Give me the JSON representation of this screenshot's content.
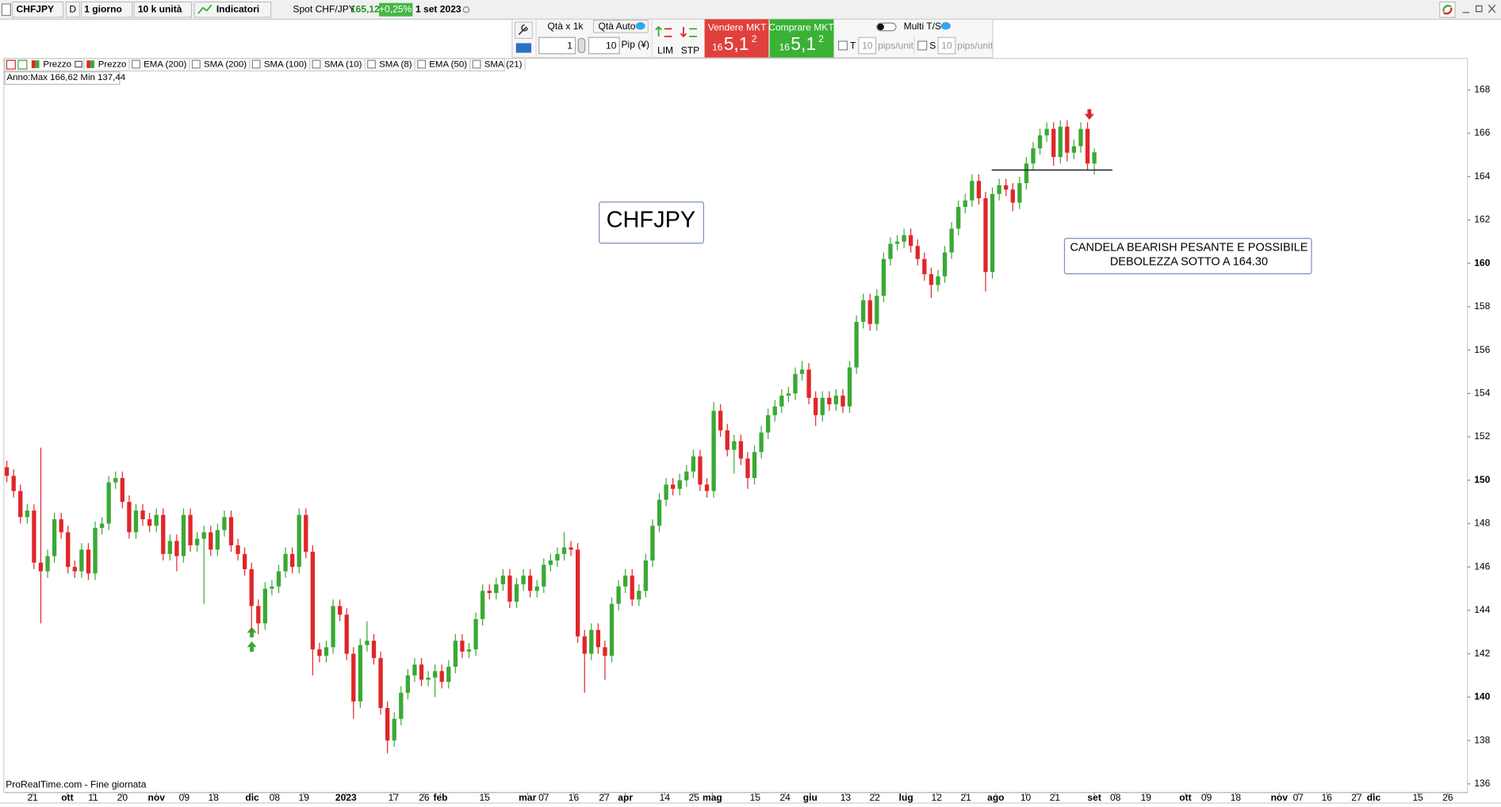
{
  "toolbar": {
    "symbol": "CHFJPY",
    "mode": "D",
    "period": "1 giorno",
    "units": "10 k unità",
    "indicators": "Indicatori",
    "instrument": "Spot CHF/JPY",
    "price": "165,12",
    "change": "+0,25%",
    "date": "1 set 2023"
  },
  "order_panel": {
    "qty_label": "Qtà  x 1k",
    "qty_auto": "Qtà Auto",
    "qty_value": "1",
    "pip_value": "10",
    "pip_label": "Pip (¥)",
    "lim": "LIM",
    "stp": "STP",
    "sell": {
      "label": "Vendere MKT",
      "prefix": "16",
      "big": "5,1",
      "sup": "2"
    },
    "buy": {
      "label": "Comprare MKT",
      "prefix": "16",
      "big": "5,1",
      "sup": "2"
    },
    "multi_ts": "Multi T/S",
    "t_label": "T",
    "t_value": "10",
    "t_unit": "pips/unit",
    "s_label": "S",
    "s_value": "10",
    "s_unit": "pips/unit"
  },
  "indicator_bar": [
    "Prezzo",
    "Prezzo",
    "EMA (200)",
    "SMA (200)",
    "SMA (100)",
    "SMA (10)",
    "SMA (8)",
    "EMA (50)",
    "SMA (21)"
  ],
  "year_range": "Anno:Max 166,62 Min 137,44",
  "footer": "ProRealTime.com - Fine giornata",
  "chart_data": {
    "type": "candlestick",
    "up_color": "#3aa935",
    "down_color": "#e0262a",
    "annotations": [
      "CHFJPY",
      "CANDELA BEARISH PESANTE E POSSIBILE",
      "DEBOLEZZA SOTTO A 164.30"
    ],
    "support_level": 164.3,
    "open": [
      150.6,
      150.2,
      149.5,
      148.3,
      148.6,
      146.2,
      145.8,
      146.5,
      148.2,
      147.6,
      146.0,
      145.8,
      146.8,
      145.7,
      147.8,
      148.0,
      149.9,
      150.1,
      149.0,
      147.6,
      148.6,
      148.2,
      147.9,
      148.4,
      146.6,
      147.2,
      146.5,
      148.4,
      147.0,
      147.3,
      147.6,
      146.8,
      147.7,
      148.3,
      147.0,
      146.6,
      145.9,
      144.2,
      143.4,
      145.0,
      145.1,
      145.8,
      146.6,
      146.0,
      148.4,
      146.7,
      142.2,
      141.9,
      142.3,
      144.2,
      143.8,
      142.0,
      139.8,
      142.4,
      142.6,
      141.8,
      139.5,
      138.0,
      139.0,
      140.2,
      141.0,
      141.5,
      140.8,
      140.9,
      141.2,
      140.7,
      141.4,
      142.6,
      142.1,
      142.2,
      143.6,
      144.9,
      144.8,
      145.2,
      145.6,
      144.4,
      145.2,
      145.6,
      144.9,
      145.1,
      146.1,
      146.3,
      146.6,
      146.9,
      146.8,
      142.8,
      142.0,
      143.1,
      142.3,
      141.9,
      144.3,
      145.1,
      145.6,
      144.5,
      144.9,
      146.3,
      147.9,
      149.1,
      149.8,
      149.6,
      150.0,
      150.4,
      151.1,
      149.8,
      149.5,
      153.2,
      152.3,
      151.4,
      151.8,
      151.0,
      150.1,
      151.3,
      152.2,
      153.0,
      153.4,
      153.9,
      154.0,
      154.9,
      155.1,
      153.8,
      153.0,
      153.8,
      153.5,
      153.9,
      153.4,
      155.2,
      157.3,
      158.3,
      157.2,
      158.5,
      160.2,
      160.9,
      161.0,
      161.3,
      160.8,
      160.2,
      159.5,
      159.0,
      159.4,
      160.5,
      161.6,
      162.6,
      162.9,
      163.8,
      163.0,
      159.6,
      163.2,
      163.6,
      163.4,
      162.8,
      163.7,
      164.6,
      165.3,
      165.9,
      166.2,
      164.9,
      166.3,
      165.1,
      165.4,
      166.2,
      164.6
    ],
    "high": [
      150.9,
      150.5,
      149.8,
      148.9,
      148.9,
      151.5,
      146.8,
      148.5,
      148.5,
      147.9,
      146.3,
      147.1,
      147.1,
      148.1,
      148.3,
      150.2,
      150.4,
      150.4,
      149.3,
      148.9,
      148.9,
      148.5,
      148.7,
      148.7,
      147.5,
      147.5,
      148.7,
      148.7,
      147.6,
      147.9,
      147.9,
      148.0,
      148.6,
      148.6,
      147.3,
      146.9,
      146.2,
      144.5,
      145.3,
      145.4,
      146.1,
      146.9,
      146.9,
      148.7,
      148.7,
      147.0,
      142.5,
      142.6,
      144.5,
      144.5,
      144.1,
      142.3,
      142.7,
      143.5,
      142.9,
      142.1,
      139.8,
      139.3,
      140.5,
      141.3,
      141.8,
      141.8,
      141.2,
      141.5,
      141.5,
      141.7,
      142.9,
      142.9,
      142.5,
      143.9,
      145.2,
      145.2,
      145.5,
      145.9,
      145.9,
      145.5,
      145.9,
      145.9,
      145.4,
      146.4,
      146.6,
      146.9,
      147.6,
      147.2,
      147.1,
      143.1,
      143.4,
      143.4,
      142.6,
      144.6,
      145.4,
      145.9,
      145.9,
      145.2,
      146.6,
      148.2,
      149.4,
      150.1,
      150.1,
      150.3,
      150.7,
      151.4,
      151.4,
      150.1,
      153.6,
      153.5,
      152.6,
      152.1,
      152.1,
      151.3,
      151.6,
      152.5,
      153.3,
      153.7,
      154.2,
      154.3,
      155.2,
      155.5,
      155.4,
      154.1,
      154.1,
      154.1,
      154.2,
      154.2,
      155.5,
      157.6,
      158.6,
      158.6,
      158.8,
      160.5,
      161.2,
      161.3,
      161.6,
      161.6,
      161.1,
      160.5,
      159.8,
      159.7,
      160.8,
      161.9,
      162.9,
      163.2,
      164.1,
      164.1,
      163.3,
      163.5,
      163.9,
      163.9,
      163.7,
      164.0,
      164.9,
      165.6,
      166.2,
      166.5,
      166.5,
      166.6,
      166.6,
      165.7,
      166.5,
      166.5,
      165.3
    ],
    "low": [
      149.9,
      149.2,
      148.0,
      148.0,
      145.9,
      143.4,
      145.5,
      146.2,
      147.3,
      145.7,
      145.5,
      145.5,
      145.4,
      145.4,
      147.5,
      147.7,
      149.6,
      148.7,
      147.3,
      147.3,
      147.9,
      147.6,
      147.6,
      146.3,
      146.3,
      145.8,
      146.2,
      146.7,
      146.7,
      144.3,
      146.5,
      146.5,
      147.4,
      146.7,
      146.3,
      145.6,
      143.0,
      142.9,
      143.1,
      144.7,
      144.8,
      145.5,
      145.7,
      145.7,
      146.4,
      141.0,
      141.6,
      141.6,
      142.0,
      143.5,
      141.7,
      139.0,
      139.5,
      142.1,
      141.5,
      139.2,
      137.4,
      137.7,
      138.7,
      139.9,
      140.7,
      140.5,
      140.5,
      140.0,
      140.4,
      140.4,
      141.1,
      141.8,
      141.8,
      141.9,
      143.3,
      144.5,
      144.5,
      144.9,
      144.1,
      144.1,
      144.9,
      144.6,
      144.6,
      144.8,
      145.8,
      146.0,
      146.3,
      146.5,
      142.5,
      140.2,
      141.7,
      142.0,
      140.8,
      141.6,
      144.0,
      144.8,
      144.2,
      144.2,
      144.6,
      146.0,
      147.6,
      148.8,
      149.3,
      149.3,
      149.7,
      150.1,
      149.5,
      149.2,
      149.2,
      152.0,
      151.1,
      150.3,
      150.7,
      149.6,
      149.8,
      151.0,
      151.9,
      152.7,
      153.1,
      153.6,
      153.7,
      154.6,
      153.5,
      152.5,
      152.7,
      153.2,
      153.2,
      153.1,
      153.1,
      154.9,
      157.0,
      156.9,
      156.9,
      158.2,
      159.9,
      160.6,
      160.7,
      160.5,
      159.9,
      159.2,
      158.4,
      158.7,
      159.1,
      160.2,
      161.3,
      162.3,
      162.6,
      162.7,
      158.7,
      159.3,
      162.9,
      163.1,
      162.4,
      162.5,
      163.4,
      164.3,
      165.0,
      165.6,
      164.5,
      164.6,
      164.7,
      164.8,
      165.1,
      164.3,
      164.1
    ],
    "close": [
      150.2,
      149.5,
      148.3,
      148.6,
      146.2,
      145.8,
      146.5,
      148.2,
      147.6,
      146.0,
      145.8,
      146.8,
      145.7,
      147.8,
      148.0,
      149.9,
      150.1,
      149.0,
      147.6,
      148.6,
      148.2,
      147.9,
      148.4,
      146.6,
      147.2,
      146.5,
      148.4,
      147.0,
      147.3,
      147.6,
      146.8,
      147.7,
      148.3,
      147.0,
      146.6,
      145.9,
      144.2,
      143.4,
      145.0,
      145.1,
      145.8,
      146.6,
      146.0,
      148.4,
      146.7,
      142.2,
      141.9,
      142.3,
      144.2,
      143.8,
      142.0,
      139.8,
      142.4,
      142.6,
      141.8,
      139.5,
      138.0,
      139.0,
      140.2,
      141.0,
      141.5,
      140.8,
      140.9,
      141.2,
      140.7,
      141.4,
      142.6,
      142.1,
      142.2,
      143.6,
      144.9,
      144.8,
      145.2,
      145.6,
      144.4,
      145.2,
      145.6,
      144.9,
      145.1,
      146.1,
      146.3,
      146.6,
      146.9,
      146.8,
      142.8,
      142.0,
      143.1,
      142.3,
      141.9,
      144.3,
      145.1,
      145.6,
      144.5,
      144.9,
      146.3,
      147.9,
      149.1,
      149.8,
      149.6,
      150.0,
      150.4,
      151.1,
      149.8,
      149.5,
      153.2,
      152.3,
      151.4,
      151.8,
      151.0,
      150.1,
      151.3,
      152.2,
      153.0,
      153.4,
      153.9,
      154.0,
      154.9,
      155.1,
      153.8,
      153.0,
      153.8,
      153.5,
      153.9,
      153.4,
      155.2,
      157.3,
      158.3,
      157.2,
      158.5,
      160.2,
      160.9,
      161.0,
      161.3,
      160.8,
      160.2,
      159.5,
      159.0,
      159.4,
      160.5,
      161.6,
      162.6,
      162.9,
      163.8,
      163.0,
      159.6,
      163.2,
      163.6,
      163.4,
      162.8,
      163.7,
      164.6,
      165.3,
      165.9,
      166.2,
      164.9,
      166.3,
      165.1,
      165.4,
      166.2,
      164.6,
      165.12
    ],
    "ylim": [
      135.6,
      169.4
    ],
    "yticks": [
      136,
      138,
      140,
      142,
      144,
      146,
      148,
      150,
      152,
      154,
      156,
      158,
      160,
      162,
      164,
      166,
      168
    ],
    "xlim": [
      -0.3,
      214.9
    ],
    "xticks": [
      {
        "value": 3.8,
        "label": "21"
      },
      {
        "value": 8.9,
        "label": "ott"
      },
      {
        "value": 12.7,
        "label": "11"
      },
      {
        "value": 17.0,
        "label": "20"
      },
      {
        "value": 22.0,
        "label": "nov"
      },
      {
        "value": 26.1,
        "label": "09"
      },
      {
        "value": 30.4,
        "label": "18"
      },
      {
        "value": 36.1,
        "label": "dic"
      },
      {
        "value": 39.4,
        "label": "08"
      },
      {
        "value": 43.7,
        "label": "19"
      },
      {
        "value": 49.9,
        "label": "2023"
      },
      {
        "value": 56.9,
        "label": "17"
      },
      {
        "value": 61.4,
        "label": "26"
      },
      {
        "value": 63.8,
        "label": "feb"
      },
      {
        "value": 70.3,
        "label": "15"
      },
      {
        "value": 76.6,
        "label": "mar"
      },
      {
        "value": 79.0,
        "label": "07"
      },
      {
        "value": 83.4,
        "label": "16"
      },
      {
        "value": 87.9,
        "label": "27"
      },
      {
        "value": 91.0,
        "label": "apr"
      },
      {
        "value": 96.8,
        "label": "14"
      },
      {
        "value": 101.1,
        "label": "25"
      },
      {
        "value": 103.8,
        "label": "mag"
      },
      {
        "value": 110.1,
        "label": "15"
      },
      {
        "value": 114.5,
        "label": "24"
      },
      {
        "value": 118.2,
        "label": "giu"
      },
      {
        "value": 123.4,
        "label": "13"
      },
      {
        "value": 127.7,
        "label": "22"
      },
      {
        "value": 132.3,
        "label": "lug"
      },
      {
        "value": 136.8,
        "label": "12"
      },
      {
        "value": 141.1,
        "label": "21"
      },
      {
        "value": 145.5,
        "label": "ago"
      },
      {
        "value": 149.9,
        "label": "10"
      },
      {
        "value": 154.2,
        "label": "21"
      },
      {
        "value": 160.0,
        "label": "set"
      },
      {
        "value": 163.1,
        "label": "08"
      },
      {
        "value": 167.6,
        "label": "19"
      },
      {
        "value": 173.4,
        "label": "ott"
      },
      {
        "value": 176.5,
        "label": "09"
      },
      {
        "value": 180.8,
        "label": "18"
      },
      {
        "value": 187.2,
        "label": "nov"
      },
      {
        "value": 190.0,
        "label": "07"
      },
      {
        "value": 194.2,
        "label": "16"
      },
      {
        "value": 198.6,
        "label": "27"
      },
      {
        "value": 201.1,
        "label": "dic"
      },
      {
        "value": 207.6,
        "label": "15"
      },
      {
        "value": 212.0,
        "label": "26"
      }
    ],
    "grid": false
  }
}
